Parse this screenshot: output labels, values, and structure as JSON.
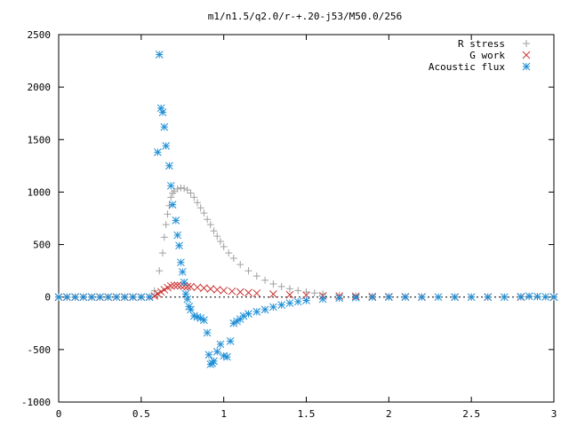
{
  "chart_data": {
    "type": "scatter",
    "title": "m1/n1.5/q2.0/r-+.20-j53/M50.0/256",
    "xlabel": "",
    "ylabel": "",
    "xlim": [
      0,
      3
    ],
    "ylim": [
      -1000,
      2500
    ],
    "x_ticks": [
      0,
      0.5,
      1,
      1.5,
      2,
      2.5,
      3
    ],
    "x_tick_labels": [
      "0",
      "0.5",
      "1",
      "1.5",
      "2",
      "2.5",
      "3"
    ],
    "y_ticks": [
      -1000,
      -500,
      0,
      500,
      1000,
      1500,
      2000,
      2500
    ],
    "y_tick_labels": [
      "-1000",
      "-500",
      "0",
      "500",
      "1000",
      "1500",
      "2000",
      "2500"
    ],
    "grid": false,
    "legend": "top-right",
    "series": [
      {
        "name": "R stress",
        "marker": "plus",
        "color": "#a0a0a0",
        "points": [
          [
            0.0,
            0
          ],
          [
            0.05,
            0
          ],
          [
            0.1,
            0
          ],
          [
            0.15,
            0
          ],
          [
            0.2,
            0
          ],
          [
            0.25,
            0
          ],
          [
            0.3,
            0
          ],
          [
            0.35,
            0
          ],
          [
            0.4,
            0
          ],
          [
            0.45,
            0
          ],
          [
            0.5,
            0
          ],
          [
            0.55,
            0
          ],
          [
            0.58,
            60
          ],
          [
            0.61,
            250
          ],
          [
            0.63,
            420
          ],
          [
            0.64,
            570
          ],
          [
            0.65,
            690
          ],
          [
            0.66,
            790
          ],
          [
            0.67,
            870
          ],
          [
            0.68,
            950
          ],
          [
            0.69,
            990
          ],
          [
            0.7,
            1010
          ],
          [
            0.72,
            1030
          ],
          [
            0.74,
            1040
          ],
          [
            0.76,
            1035
          ],
          [
            0.78,
            1020
          ],
          [
            0.8,
            990
          ],
          [
            0.82,
            950
          ],
          [
            0.84,
            900
          ],
          [
            0.86,
            850
          ],
          [
            0.88,
            800
          ],
          [
            0.9,
            740
          ],
          [
            0.92,
            690
          ],
          [
            0.94,
            630
          ],
          [
            0.96,
            580
          ],
          [
            0.98,
            530
          ],
          [
            1.0,
            480
          ],
          [
            1.03,
            420
          ],
          [
            1.06,
            370
          ],
          [
            1.1,
            310
          ],
          [
            1.15,
            250
          ],
          [
            1.2,
            200
          ],
          [
            1.25,
            160
          ],
          [
            1.3,
            125
          ],
          [
            1.35,
            100
          ],
          [
            1.4,
            80
          ],
          [
            1.45,
            62
          ],
          [
            1.5,
            48
          ],
          [
            1.55,
            38
          ],
          [
            1.6,
            30
          ],
          [
            1.7,
            18
          ],
          [
            1.8,
            11
          ],
          [
            1.9,
            6
          ],
          [
            2.0,
            3
          ],
          [
            2.1,
            2
          ],
          [
            2.2,
            1
          ],
          [
            2.3,
            0
          ],
          [
            2.4,
            0
          ],
          [
            2.5,
            0
          ],
          [
            2.6,
            0
          ],
          [
            2.7,
            0
          ],
          [
            2.8,
            2
          ],
          [
            2.85,
            4
          ],
          [
            2.9,
            3
          ],
          [
            3.0,
            0
          ]
        ]
      },
      {
        "name": "G work",
        "marker": "cross",
        "color": "#cc3333",
        "points": [
          [
            0.0,
            0
          ],
          [
            0.05,
            0
          ],
          [
            0.1,
            0
          ],
          [
            0.15,
            0
          ],
          [
            0.2,
            0
          ],
          [
            0.25,
            0
          ],
          [
            0.3,
            0
          ],
          [
            0.35,
            0
          ],
          [
            0.4,
            0
          ],
          [
            0.45,
            0
          ],
          [
            0.5,
            0
          ],
          [
            0.55,
            0
          ],
          [
            0.58,
            10
          ],
          [
            0.6,
            30
          ],
          [
            0.62,
            50
          ],
          [
            0.64,
            70
          ],
          [
            0.66,
            90
          ],
          [
            0.68,
            105
          ],
          [
            0.7,
            110
          ],
          [
            0.72,
            112
          ],
          [
            0.74,
            108
          ],
          [
            0.76,
            105
          ],
          [
            0.78,
            100
          ],
          [
            0.8,
            98
          ],
          [
            0.84,
            92
          ],
          [
            0.88,
            85
          ],
          [
            0.92,
            78
          ],
          [
            0.96,
            70
          ],
          [
            1.0,
            62
          ],
          [
            1.05,
            55
          ],
          [
            1.1,
            48
          ],
          [
            1.15,
            42
          ],
          [
            1.2,
            36
          ],
          [
            1.3,
            28
          ],
          [
            1.4,
            22
          ],
          [
            1.5,
            17
          ],
          [
            1.6,
            12
          ],
          [
            1.7,
            9
          ],
          [
            1.8,
            6
          ],
          [
            1.9,
            4
          ],
          [
            2.0,
            3
          ],
          [
            2.1,
            2
          ],
          [
            2.2,
            1
          ],
          [
            2.4,
            0
          ],
          [
            2.6,
            0
          ],
          [
            2.8,
            0
          ],
          [
            3.0,
            0
          ]
        ]
      },
      {
        "name": "Acoustic flux",
        "marker": "star",
        "color": "#1f8fd6",
        "points": [
          [
            0.0,
            0
          ],
          [
            0.05,
            0
          ],
          [
            0.1,
            0
          ],
          [
            0.15,
            0
          ],
          [
            0.2,
            0
          ],
          [
            0.25,
            0
          ],
          [
            0.3,
            0
          ],
          [
            0.35,
            0
          ],
          [
            0.4,
            0
          ],
          [
            0.45,
            0
          ],
          [
            0.5,
            0
          ],
          [
            0.55,
            0
          ],
          [
            0.6,
            1380
          ],
          [
            0.61,
            2310
          ],
          [
            0.62,
            1800
          ],
          [
            0.63,
            1760
          ],
          [
            0.64,
            1620
          ],
          [
            0.65,
            1440
          ],
          [
            0.67,
            1250
          ],
          [
            0.68,
            1060
          ],
          [
            0.69,
            880
          ],
          [
            0.71,
            730
          ],
          [
            0.72,
            590
          ],
          [
            0.73,
            490
          ],
          [
            0.74,
            330
          ],
          [
            0.75,
            240
          ],
          [
            0.76,
            140
          ],
          [
            0.77,
            30
          ],
          [
            0.78,
            -20
          ],
          [
            0.79,
            -90
          ],
          [
            0.8,
            -120
          ],
          [
            0.82,
            -180
          ],
          [
            0.84,
            -190
          ],
          [
            0.86,
            -200
          ],
          [
            0.88,
            -220
          ],
          [
            0.9,
            -340
          ],
          [
            0.91,
            -550
          ],
          [
            0.92,
            -640
          ],
          [
            0.93,
            -630
          ],
          [
            0.94,
            -610
          ],
          [
            0.96,
            -520
          ],
          [
            0.98,
            -450
          ],
          [
            1.0,
            -560
          ],
          [
            1.02,
            -570
          ],
          [
            1.04,
            -420
          ],
          [
            1.06,
            -250
          ],
          [
            1.08,
            -230
          ],
          [
            1.1,
            -210
          ],
          [
            1.12,
            -180
          ],
          [
            1.15,
            -160
          ],
          [
            1.2,
            -140
          ],
          [
            1.25,
            -120
          ],
          [
            1.3,
            -95
          ],
          [
            1.35,
            -75
          ],
          [
            1.4,
            -58
          ],
          [
            1.45,
            -44
          ],
          [
            1.5,
            -32
          ],
          [
            1.6,
            -18
          ],
          [
            1.7,
            -10
          ],
          [
            1.8,
            -5
          ],
          [
            1.9,
            -2
          ],
          [
            2.0,
            0
          ],
          [
            2.1,
            0
          ],
          [
            2.2,
            0
          ],
          [
            2.3,
            0
          ],
          [
            2.4,
            0
          ],
          [
            2.5,
            0
          ],
          [
            2.6,
            0
          ],
          [
            2.7,
            0
          ],
          [
            2.8,
            3
          ],
          [
            2.85,
            8
          ],
          [
            2.9,
            5
          ],
          [
            2.95,
            2
          ],
          [
            3.0,
            0
          ]
        ]
      }
    ]
  }
}
